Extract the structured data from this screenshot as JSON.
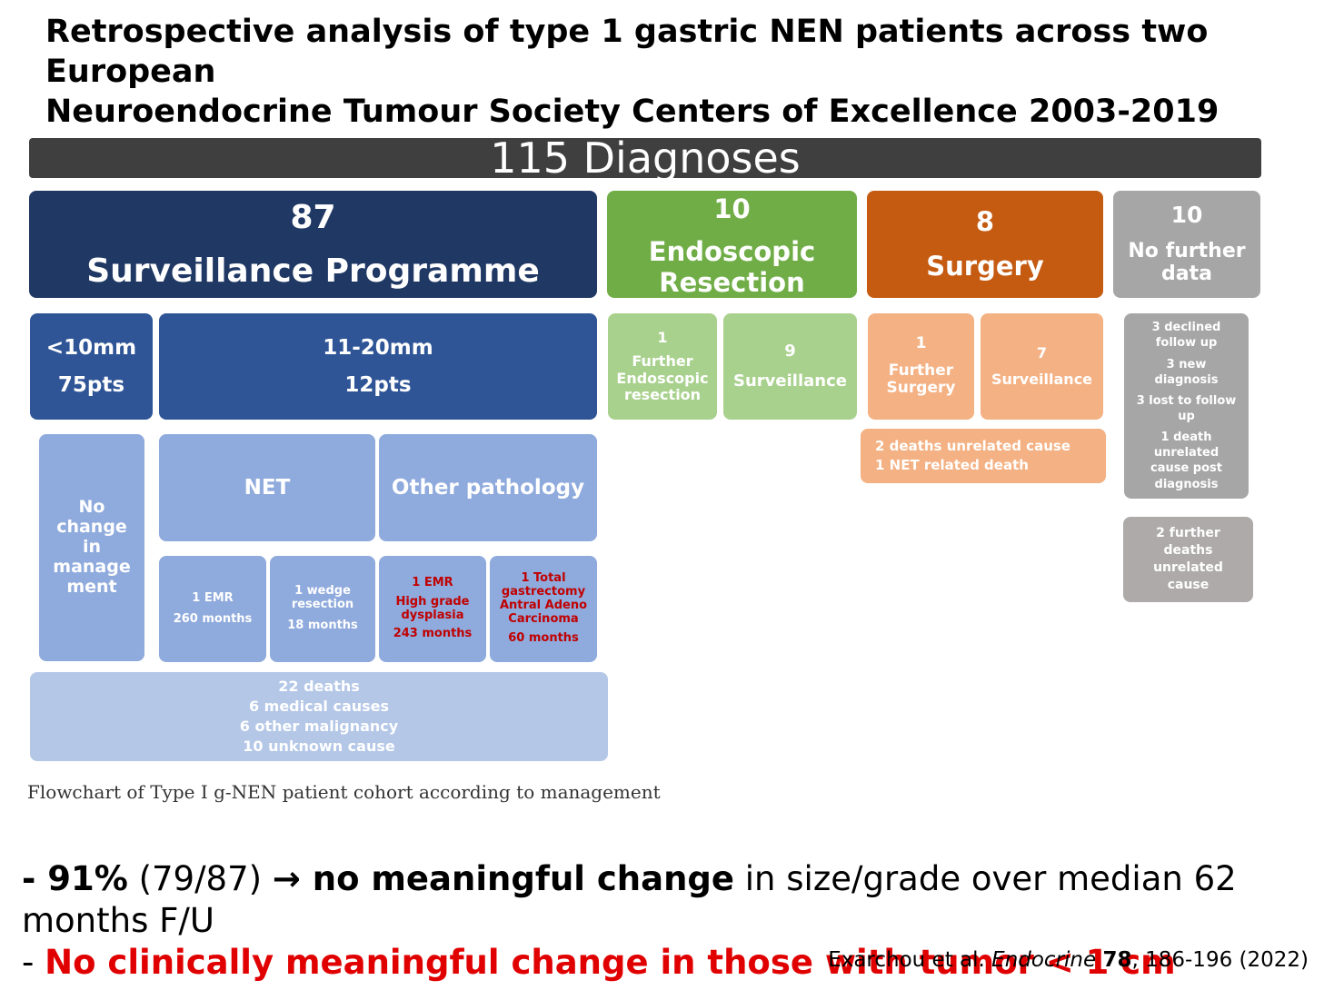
{
  "title": {
    "line1": "Retrospective analysis of type 1 gastric NEN patients across two European",
    "line2": "Neuroendocrine Tumour Society Centers of Excellence 2003-2019"
  },
  "banner": "115 Diagnoses",
  "categories": {
    "surveillance": {
      "count": "87",
      "label": "Surveillance Programme"
    },
    "endoscopic": {
      "count": "10",
      "label1": "Endoscopic",
      "label2": "Resection"
    },
    "surgery": {
      "count": "8",
      "label": "Surgery"
    },
    "no_data": {
      "count": "10",
      "label1": "No further",
      "label2": "data"
    }
  },
  "surveillance_sizes": {
    "small": {
      "line1": "<10mm",
      "line2": "75pts"
    },
    "medium": {
      "line1": "11-20mm",
      "line2": "12pts"
    }
  },
  "no_change": [
    "No",
    "change",
    "in",
    "manage",
    "ment"
  ],
  "pathology": {
    "net": "NET",
    "other": "Other pathology"
  },
  "outcomes": [
    {
      "line1": "1 EMR",
      "line2": "260 months"
    },
    {
      "line1": "1 wedge",
      "line2": "resection",
      "line3": "18 months"
    },
    {
      "line1": "1 EMR",
      "line2": "High grade",
      "line3": "dysplasia",
      "line4": "243 months"
    },
    {
      "line1": "1 Total",
      "line2": "gastrectomy",
      "line3": "Antral Adeno",
      "line4": "Carcinoma",
      "line5": "60 months"
    }
  ],
  "deaths": [
    "22 deaths",
    "6 medical causes",
    "6 other malignancy",
    "10 unknown cause"
  ],
  "endoscopic_sub": {
    "further": {
      "count": "1",
      "line1": "Further",
      "line2": "Endoscopic",
      "line3": "resection"
    },
    "surveillance": {
      "count": "9",
      "label": "Surveillance"
    }
  },
  "surgery_sub": {
    "further": {
      "count": "1",
      "line1": "Further",
      "line2": "Surgery"
    },
    "surveillance": {
      "count": "7",
      "label": "Surveillance"
    },
    "deaths": [
      "2 deaths unrelated cause",
      "1 NET related death"
    ]
  },
  "no_data_sub": {
    "details": [
      "3 declined",
      "follow up",
      "3 new",
      "diagnosis",
      "3 lost to follow",
      "up",
      "1 death",
      "unrelated",
      "cause post",
      "diagnosis"
    ],
    "further_deaths": [
      "2 further",
      "deaths",
      "unrelated",
      "cause"
    ]
  },
  "caption": "Flowchart of Type I g-NEN patient cohort according to management",
  "bullets": {
    "b1_dash": "- ",
    "b1_pct": "91%",
    "b1_frac": " (79/87) ",
    "b1_arrow": "→ ",
    "b1_bold": "no meaningful change",
    "b1_rest": " in size/grade over median 62 months F/U",
    "b2_dash": "- ",
    "b2_text": "No clinically meaningful change in those with tumor < 1 cm"
  },
  "reference": {
    "authors": "Exarchou et al. ",
    "journal": "Endocrine",
    "volume": "78",
    "pages": ", 186-196 (2022)"
  },
  "colors": {
    "navy": "#203864",
    "blue": "#2f5597",
    "light_blue": "#8faadc",
    "pale_blue": "#b4c7e7",
    "green": "#70ad47",
    "light_green": "#a9d18e",
    "orange": "#c55a11",
    "light_orange": "#f4b183",
    "grey": "#a6a6a6",
    "banner": "#3f3f3f",
    "highlight_red": "#e00000",
    "outcome_red": "#c00000"
  }
}
